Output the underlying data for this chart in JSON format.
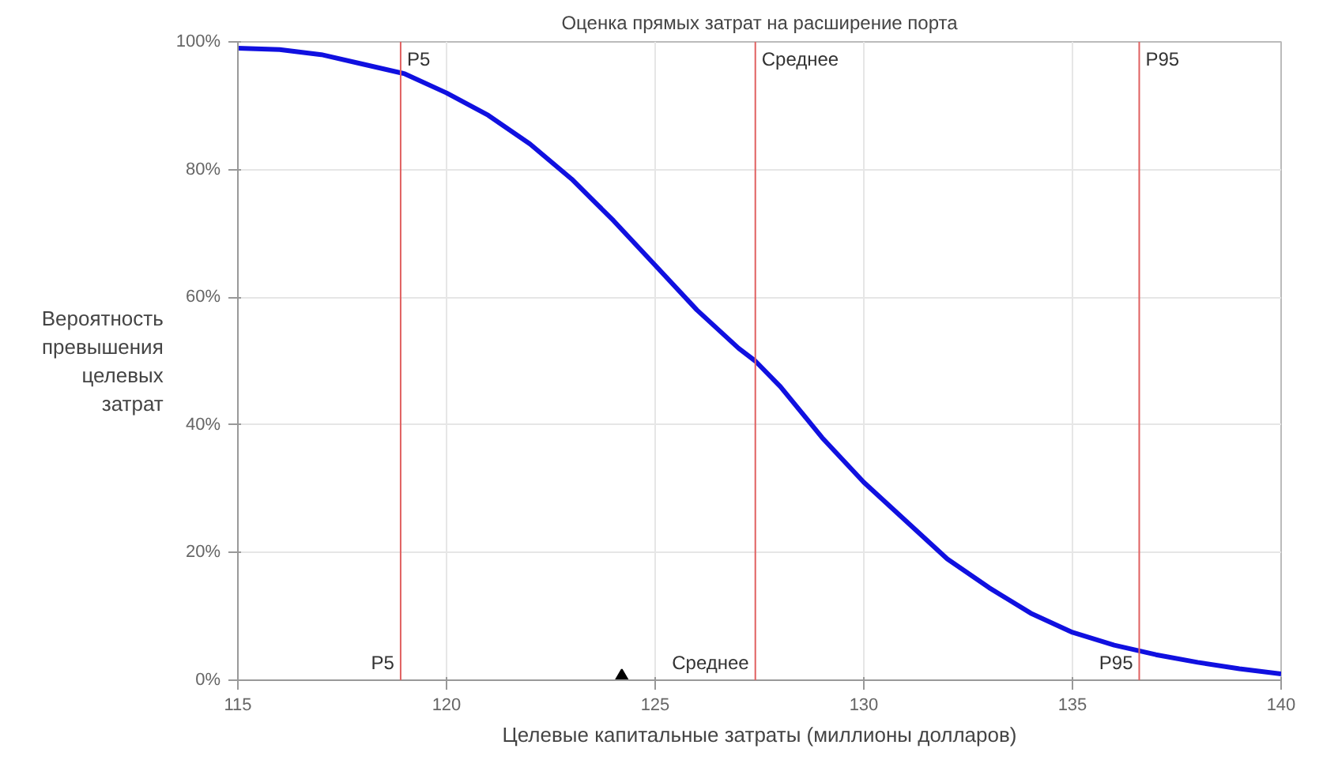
{
  "chart_data": {
    "type": "line",
    "title": "Оценка прямых затрат на расширение порта",
    "xlabel": "Целевые капитальные затраты (миллионы долларов)",
    "ylabel": "Вероятность превышения целевых затрат",
    "x": [
      115,
      116,
      117,
      118,
      119,
      120,
      121,
      122,
      123,
      124,
      125,
      126,
      127,
      127.4,
      128,
      129,
      130,
      131,
      132,
      133,
      134,
      135,
      136,
      137,
      138,
      139,
      140
    ],
    "series": [
      {
        "color": "#1010e0",
        "values": [
          99,
          98.8,
          98,
          96.5,
          95,
          92,
          88.5,
          84,
          78.5,
          72,
          65,
          58,
          52,
          50,
          46,
          38,
          31,
          25,
          19,
          14.5,
          10.5,
          7.5,
          5.5,
          4,
          2.8,
          1.8,
          1
        ]
      },
      {
        "type": "scatter",
        "marker": "triangle",
        "color": "#000000",
        "x": [
          124.2
        ],
        "values": [
          0
        ]
      }
    ],
    "xlim": [
      115,
      140
    ],
    "xticks": [
      115,
      120,
      125,
      130,
      135,
      140
    ],
    "ylim": [
      0,
      100
    ],
    "yticks": [
      {
        "value": 0,
        "label": "0%"
      },
      {
        "value": 20,
        "label": "20%"
      },
      {
        "value": 40,
        "label": "40%"
      },
      {
        "value": 60,
        "label": "60%"
      },
      {
        "value": 80,
        "label": "80%"
      },
      {
        "value": 100,
        "label": "100%"
      }
    ],
    "ref_lines": [
      {
        "axis": "x",
        "value": 118.9,
        "label": "P5",
        "color": "#e06060"
      },
      {
        "axis": "x",
        "value": 127.4,
        "label": "Среднее",
        "color": "#e06060"
      },
      {
        "axis": "x",
        "value": 136.6,
        "label": "P95",
        "color": "#e06060"
      }
    ],
    "grid": true,
    "line_style": "solid"
  }
}
